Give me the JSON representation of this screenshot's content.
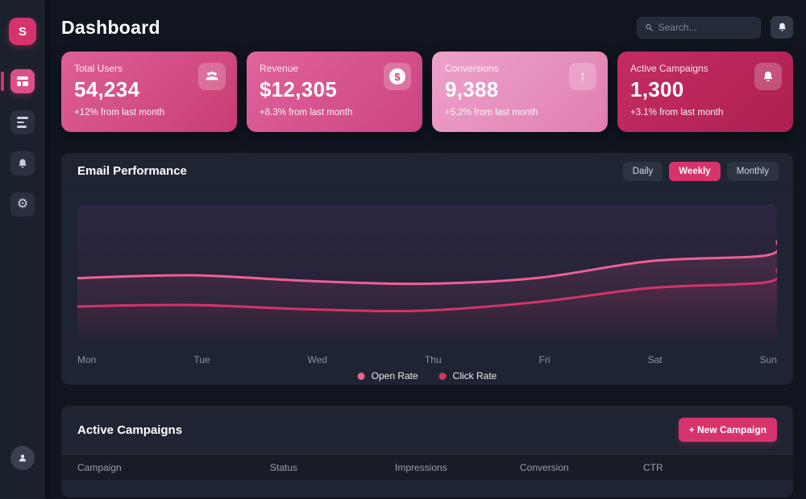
{
  "app": {
    "logo_letter": "S"
  },
  "colors": {
    "accent": "#d6336c",
    "page_bg": "#10151f",
    "sidebar_bg": "#1b212c",
    "panel_bg": "#1e2431",
    "card_gradients": [
      "#dd6095,#c93d74",
      "#e0639a,#cc4580",
      "#eda2cb,#e07fb0",
      "#c42c63,#ad2052"
    ]
  },
  "icons": {
    "sidebar": [
      "dashboard-layout",
      "list-lines",
      "bell",
      "gear"
    ],
    "header": [
      "magnifier",
      "bell"
    ],
    "cards": [
      "users",
      "dollar-circle",
      "arrow-up",
      "bell"
    ],
    "footer": [
      "user-avatar"
    ]
  },
  "header": {
    "title": "Dashboard",
    "search_placeholder": "Search..."
  },
  "stats": [
    {
      "label": "Total Users",
      "value": "54,234",
      "delta": "+12% from last month",
      "icon": "users-icon"
    },
    {
      "label": "Revenue",
      "value": "$12,305",
      "delta": "+8.3% from last month",
      "icon": "dollar-icon"
    },
    {
      "label": "Conversions",
      "value": "9,388",
      "delta": "+5.2% from last month",
      "icon": "arrow-up-icon"
    },
    {
      "label": "Active Campaigns",
      "value": "1,300",
      "delta": "+3.1% from last month",
      "icon": "bell-icon"
    }
  ],
  "email_performance": {
    "title": "Email Performance",
    "filters": [
      "Daily",
      "Weekly",
      "Monthly"
    ],
    "active_filter": "Weekly",
    "chart_data": {
      "type": "line",
      "x": [
        "Mon",
        "Tue",
        "Wed",
        "Thu",
        "Fri",
        "Sat",
        "Sun"
      ],
      "series": [
        {
          "name": "Open Rate",
          "color": "#ee5f96",
          "values": [
            48,
            50,
            46,
            44,
            48,
            60,
            64
          ],
          "end_spike": 74
        },
        {
          "name": "Click Rate",
          "color": "#d6336c",
          "values": [
            28,
            29,
            26,
            25,
            31,
            41,
            45
          ],
          "end_spike": 54
        }
      ],
      "ylim": [
        0,
        100
      ],
      "y_axis_visible": false,
      "grid": false,
      "legend_position": "bottom-center"
    }
  },
  "campaigns": {
    "title": "Active Campaigns",
    "new_button": "+ New Campaign",
    "columns": [
      "Campaign",
      "Status",
      "Impressions",
      "Conversion",
      "CTR"
    ],
    "rows": []
  }
}
